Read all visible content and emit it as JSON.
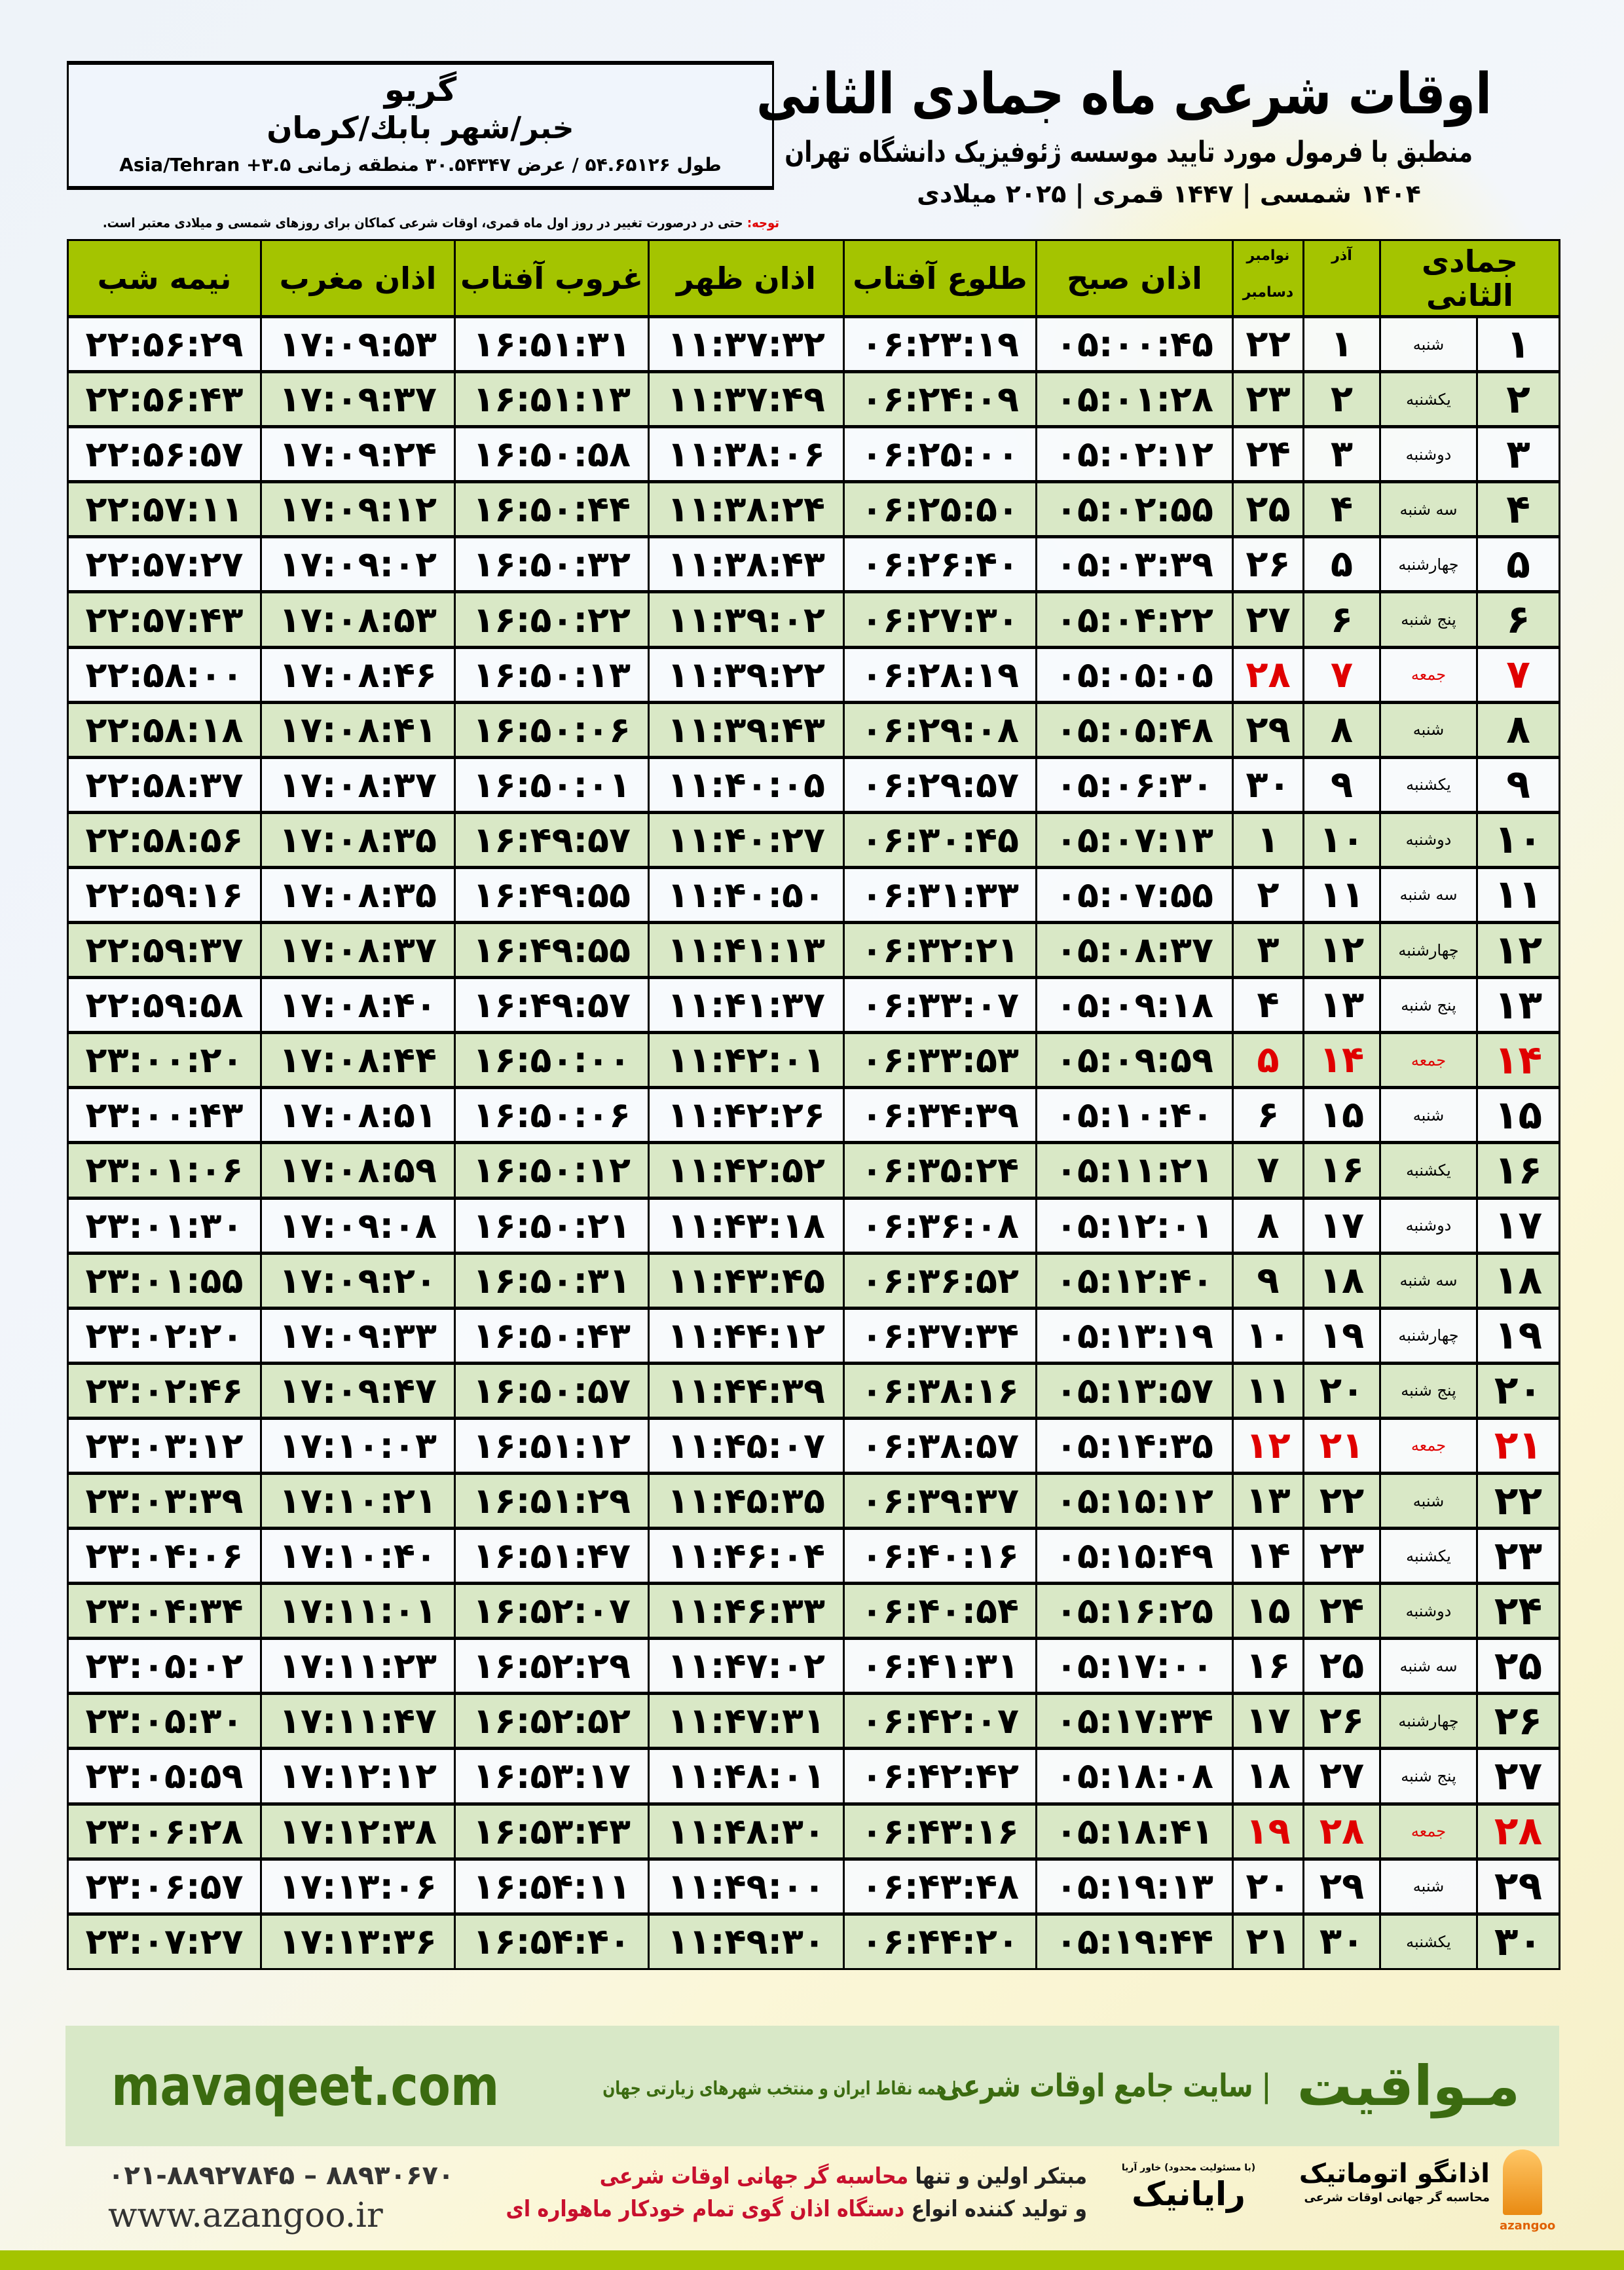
{
  "colors": {
    "header_green": "#a4c400",
    "row_green": "#d9e8c6",
    "friday": "#e00000",
    "brand": "#3b6b10",
    "footer_bg": "#d8e8c7"
  },
  "info": {
    "city": "گريو",
    "path": "خبر/شهر بابك/كرمان",
    "coords": "طول ۵۴.۶۵۱۲۶ / عرض ۳۰.۵۴۳۴۷ منطقه زمانی ۳.۵+ Asia/Tehran"
  },
  "title": {
    "main": "اوقات شرعی ماه جمادی الثانی",
    "sub": "منطبق با فرمول مورد تایید موسسه ژئوفیزیک دانشگاه تهران",
    "years": "۱۴۰۴ شمسی | ۱۴۴۷ قمری | ۲۰۲۵ میلادی"
  },
  "note": {
    "label": "توجه:",
    "text": " حتی در درصورت تغییر در روز اول ماه قمری، اوقات شرعی کماکان برای روزهای شمسی و میلادی معتبر است."
  },
  "headers": {
    "month": "جمادی الثانی",
    "azar": "آذر",
    "nov": "نوامبر",
    "dec": "دسامبر",
    "fajr": "اذان صبح",
    "sunrise": "طلوع آفتاب",
    "dhuhr": "اذان ظهر",
    "sunset": "غروب آفتاب",
    "maghrib": "اذان مغرب",
    "midnight": "نیمه شب"
  },
  "rows": [
    [
      "۱",
      "شنبه",
      "۱",
      "۲۲",
      "۰۵:۰۰:۴۵",
      "۰۶:۲۳:۱۹",
      "۱۱:۳۷:۳۲",
      "۱۶:۵۱:۳۱",
      "۱۷:۰۹:۵۳",
      "۲۲:۵۶:۲۹"
    ],
    [
      "۲",
      "یکشنبه",
      "۲",
      "۲۳",
      "۰۵:۰۱:۲۸",
      "۰۶:۲۴:۰۹",
      "۱۱:۳۷:۴۹",
      "۱۶:۵۱:۱۳",
      "۱۷:۰۹:۳۷",
      "۲۲:۵۶:۴۳"
    ],
    [
      "۳",
      "دوشنبه",
      "۳",
      "۲۴",
      "۰۵:۰۲:۱۲",
      "۰۶:۲۵:۰۰",
      "۱۱:۳۸:۰۶",
      "۱۶:۵۰:۵۸",
      "۱۷:۰۹:۲۴",
      "۲۲:۵۶:۵۷"
    ],
    [
      "۴",
      "سه شنبه",
      "۴",
      "۲۵",
      "۰۵:۰۲:۵۵",
      "۰۶:۲۵:۵۰",
      "۱۱:۳۸:۲۴",
      "۱۶:۵۰:۴۴",
      "۱۷:۰۹:۱۲",
      "۲۲:۵۷:۱۱"
    ],
    [
      "۵",
      "چهارشنبه",
      "۵",
      "۲۶",
      "۰۵:۰۳:۳۹",
      "۰۶:۲۶:۴۰",
      "۱۱:۳۸:۴۳",
      "۱۶:۵۰:۳۲",
      "۱۷:۰۹:۰۲",
      "۲۲:۵۷:۲۷"
    ],
    [
      "۶",
      "پنج شنبه",
      "۶",
      "۲۷",
      "۰۵:۰۴:۲۲",
      "۰۶:۲۷:۳۰",
      "۱۱:۳۹:۰۲",
      "۱۶:۵۰:۲۲",
      "۱۷:۰۸:۵۳",
      "۲۲:۵۷:۴۳"
    ],
    [
      "۷",
      "جمعه",
      "۷",
      "۲۸",
      "۰۵:۰۵:۰۵",
      "۰۶:۲۸:۱۹",
      "۱۱:۳۹:۲۲",
      "۱۶:۵۰:۱۳",
      "۱۷:۰۸:۴۶",
      "۲۲:۵۸:۰۰"
    ],
    [
      "۸",
      "شنبه",
      "۸",
      "۲۹",
      "۰۵:۰۵:۴۸",
      "۰۶:۲۹:۰۸",
      "۱۱:۳۹:۴۳",
      "۱۶:۵۰:۰۶",
      "۱۷:۰۸:۴۱",
      "۲۲:۵۸:۱۸"
    ],
    [
      "۹",
      "یکشنبه",
      "۹",
      "۳۰",
      "۰۵:۰۶:۳۰",
      "۰۶:۲۹:۵۷",
      "۱۱:۴۰:۰۵",
      "۱۶:۵۰:۰۱",
      "۱۷:۰۸:۳۷",
      "۲۲:۵۸:۳۷"
    ],
    [
      "۱۰",
      "دوشنبه",
      "۱۰",
      "۱",
      "۰۵:۰۷:۱۳",
      "۰۶:۳۰:۴۵",
      "۱۱:۴۰:۲۷",
      "۱۶:۴۹:۵۷",
      "۱۷:۰۸:۳۵",
      "۲۲:۵۸:۵۶"
    ],
    [
      "۱۱",
      "سه شنبه",
      "۱۱",
      "۲",
      "۰۵:۰۷:۵۵",
      "۰۶:۳۱:۳۳",
      "۱۱:۴۰:۵۰",
      "۱۶:۴۹:۵۵",
      "۱۷:۰۸:۳۵",
      "۲۲:۵۹:۱۶"
    ],
    [
      "۱۲",
      "چهارشنبه",
      "۱۲",
      "۳",
      "۰۵:۰۸:۳۷",
      "۰۶:۳۲:۲۱",
      "۱۱:۴۱:۱۳",
      "۱۶:۴۹:۵۵",
      "۱۷:۰۸:۳۷",
      "۲۲:۵۹:۳۷"
    ],
    [
      "۱۳",
      "پنج شنبه",
      "۱۳",
      "۴",
      "۰۵:۰۹:۱۸",
      "۰۶:۳۳:۰۷",
      "۱۱:۴۱:۳۷",
      "۱۶:۴۹:۵۷",
      "۱۷:۰۸:۴۰",
      "۲۲:۵۹:۵۸"
    ],
    [
      "۱۴",
      "جمعه",
      "۱۴",
      "۵",
      "۰۵:۰۹:۵۹",
      "۰۶:۳۳:۵۳",
      "۱۱:۴۲:۰۱",
      "۱۶:۵۰:۰۰",
      "۱۷:۰۸:۴۴",
      "۲۳:۰۰:۲۰"
    ],
    [
      "۱۵",
      "شنبه",
      "۱۵",
      "۶",
      "۰۵:۱۰:۴۰",
      "۰۶:۳۴:۳۹",
      "۱۱:۴۲:۲۶",
      "۱۶:۵۰:۰۶",
      "۱۷:۰۸:۵۱",
      "۲۳:۰۰:۴۳"
    ],
    [
      "۱۶",
      "یکشنبه",
      "۱۶",
      "۷",
      "۰۵:۱۱:۲۱",
      "۰۶:۳۵:۲۴",
      "۱۱:۴۲:۵۲",
      "۱۶:۵۰:۱۲",
      "۱۷:۰۸:۵۹",
      "۲۳:۰۱:۰۶"
    ],
    [
      "۱۷",
      "دوشنبه",
      "۱۷",
      "۸",
      "۰۵:۱۲:۰۱",
      "۰۶:۳۶:۰۸",
      "۱۱:۴۳:۱۸",
      "۱۶:۵۰:۲۱",
      "۱۷:۰۹:۰۸",
      "۲۳:۰۱:۳۰"
    ],
    [
      "۱۸",
      "سه شنبه",
      "۱۸",
      "۹",
      "۰۵:۱۲:۴۰",
      "۰۶:۳۶:۵۲",
      "۱۱:۴۳:۴۵",
      "۱۶:۵۰:۳۱",
      "۱۷:۰۹:۲۰",
      "۲۳:۰۱:۵۵"
    ],
    [
      "۱۹",
      "چهارشنبه",
      "۱۹",
      "۱۰",
      "۰۵:۱۳:۱۹",
      "۰۶:۳۷:۳۴",
      "۱۱:۴۴:۱۲",
      "۱۶:۵۰:۴۳",
      "۱۷:۰۹:۳۳",
      "۲۳:۰۲:۲۰"
    ],
    [
      "۲۰",
      "پنج شنبه",
      "۲۰",
      "۱۱",
      "۰۵:۱۳:۵۷",
      "۰۶:۳۸:۱۶",
      "۱۱:۴۴:۳۹",
      "۱۶:۵۰:۵۷",
      "۱۷:۰۹:۴۷",
      "۲۳:۰۲:۴۶"
    ],
    [
      "۲۱",
      "جمعه",
      "۲۱",
      "۱۲",
      "۰۵:۱۴:۳۵",
      "۰۶:۳۸:۵۷",
      "۱۱:۴۵:۰۷",
      "۱۶:۵۱:۱۲",
      "۱۷:۱۰:۰۳",
      "۲۳:۰۳:۱۲"
    ],
    [
      "۲۲",
      "شنبه",
      "۲۲",
      "۱۳",
      "۰۵:۱۵:۱۲",
      "۰۶:۳۹:۳۷",
      "۱۱:۴۵:۳۵",
      "۱۶:۵۱:۲۹",
      "۱۷:۱۰:۲۱",
      "۲۳:۰۳:۳۹"
    ],
    [
      "۲۳",
      "یکشنبه",
      "۲۳",
      "۱۴",
      "۰۵:۱۵:۴۹",
      "۰۶:۴۰:۱۶",
      "۱۱:۴۶:۰۴",
      "۱۶:۵۱:۴۷",
      "۱۷:۱۰:۴۰",
      "۲۳:۰۴:۰۶"
    ],
    [
      "۲۴",
      "دوشنبه",
      "۲۴",
      "۱۵",
      "۰۵:۱۶:۲۵",
      "۰۶:۴۰:۵۴",
      "۱۱:۴۶:۳۳",
      "۱۶:۵۲:۰۷",
      "۱۷:۱۱:۰۱",
      "۲۳:۰۴:۳۴"
    ],
    [
      "۲۵",
      "سه شنبه",
      "۲۵",
      "۱۶",
      "۰۵:۱۷:۰۰",
      "۰۶:۴۱:۳۱",
      "۱۱:۴۷:۰۲",
      "۱۶:۵۲:۲۹",
      "۱۷:۱۱:۲۳",
      "۲۳:۰۵:۰۲"
    ],
    [
      "۲۶",
      "چهارشنبه",
      "۲۶",
      "۱۷",
      "۰۵:۱۷:۳۴",
      "۰۶:۴۲:۰۷",
      "۱۱:۴۷:۳۱",
      "۱۶:۵۲:۵۲",
      "۱۷:۱۱:۴۷",
      "۲۳:۰۵:۳۰"
    ],
    [
      "۲۷",
      "پنج شنبه",
      "۲۷",
      "۱۸",
      "۰۵:۱۸:۰۸",
      "۰۶:۴۲:۴۲",
      "۱۱:۴۸:۰۱",
      "۱۶:۵۳:۱۷",
      "۱۷:۱۲:۱۲",
      "۲۳:۰۵:۵۹"
    ],
    [
      "۲۸",
      "جمعه",
      "۲۸",
      "۱۹",
      "۰۵:۱۸:۴۱",
      "۰۶:۴۳:۱۶",
      "۱۱:۴۸:۳۰",
      "۱۶:۵۳:۴۳",
      "۱۷:۱۲:۳۸",
      "۲۳:۰۶:۲۸"
    ],
    [
      "۲۹",
      "شنبه",
      "۲۹",
      "۲۰",
      "۰۵:۱۹:۱۳",
      "۰۶:۴۳:۴۸",
      "۱۱:۴۹:۰۰",
      "۱۶:۵۴:۱۱",
      "۱۷:۱۳:۰۶",
      "۲۳:۰۶:۵۷"
    ],
    [
      "۳۰",
      "یکشنبه",
      "۳۰",
      "۲۱",
      "۰۵:۱۹:۴۴",
      "۰۶:۴۴:۲۰",
      "۱۱:۴۹:۳۰",
      "۱۶:۵۴:۴۰",
      "۱۷:۱۳:۳۶",
      "۲۳:۰۷:۲۷"
    ]
  ],
  "friday_rows": [
    7,
    14,
    21,
    28
  ],
  "footer": {
    "brand": "مـواقیت",
    "tagline": "| سایت جامع اوقات شرعی",
    "tagline2": "| همه نقاط ایران و منتخب شهرهای زیارتی جهان",
    "site": "mavaqeet.com",
    "phone": "۰۲۱-۸۸۹۲۷۸۴۵ – ۸۸۹۳۰۶۷۰",
    "www": "www.azangoo.ir",
    "promo1a": "مبتکر اولین و تنها ",
    "promo1b": "محاسبه گر جهانی اوقات شرعی",
    "promo2a": "و تولید کننده انواع ",
    "promo2b": "دستگاه اذان گوی تمام خودکار ماهواره ای",
    "rayanik": "رایانیک",
    "rayanik_small": "(با مسئولیت محدود) خاور آریا",
    "azangoo": "اذانگو اتوماتیک",
    "azangoo_sub": "محاسبه گر جهانی اوقات شرعی",
    "azangoo_en": "azangoo"
  }
}
